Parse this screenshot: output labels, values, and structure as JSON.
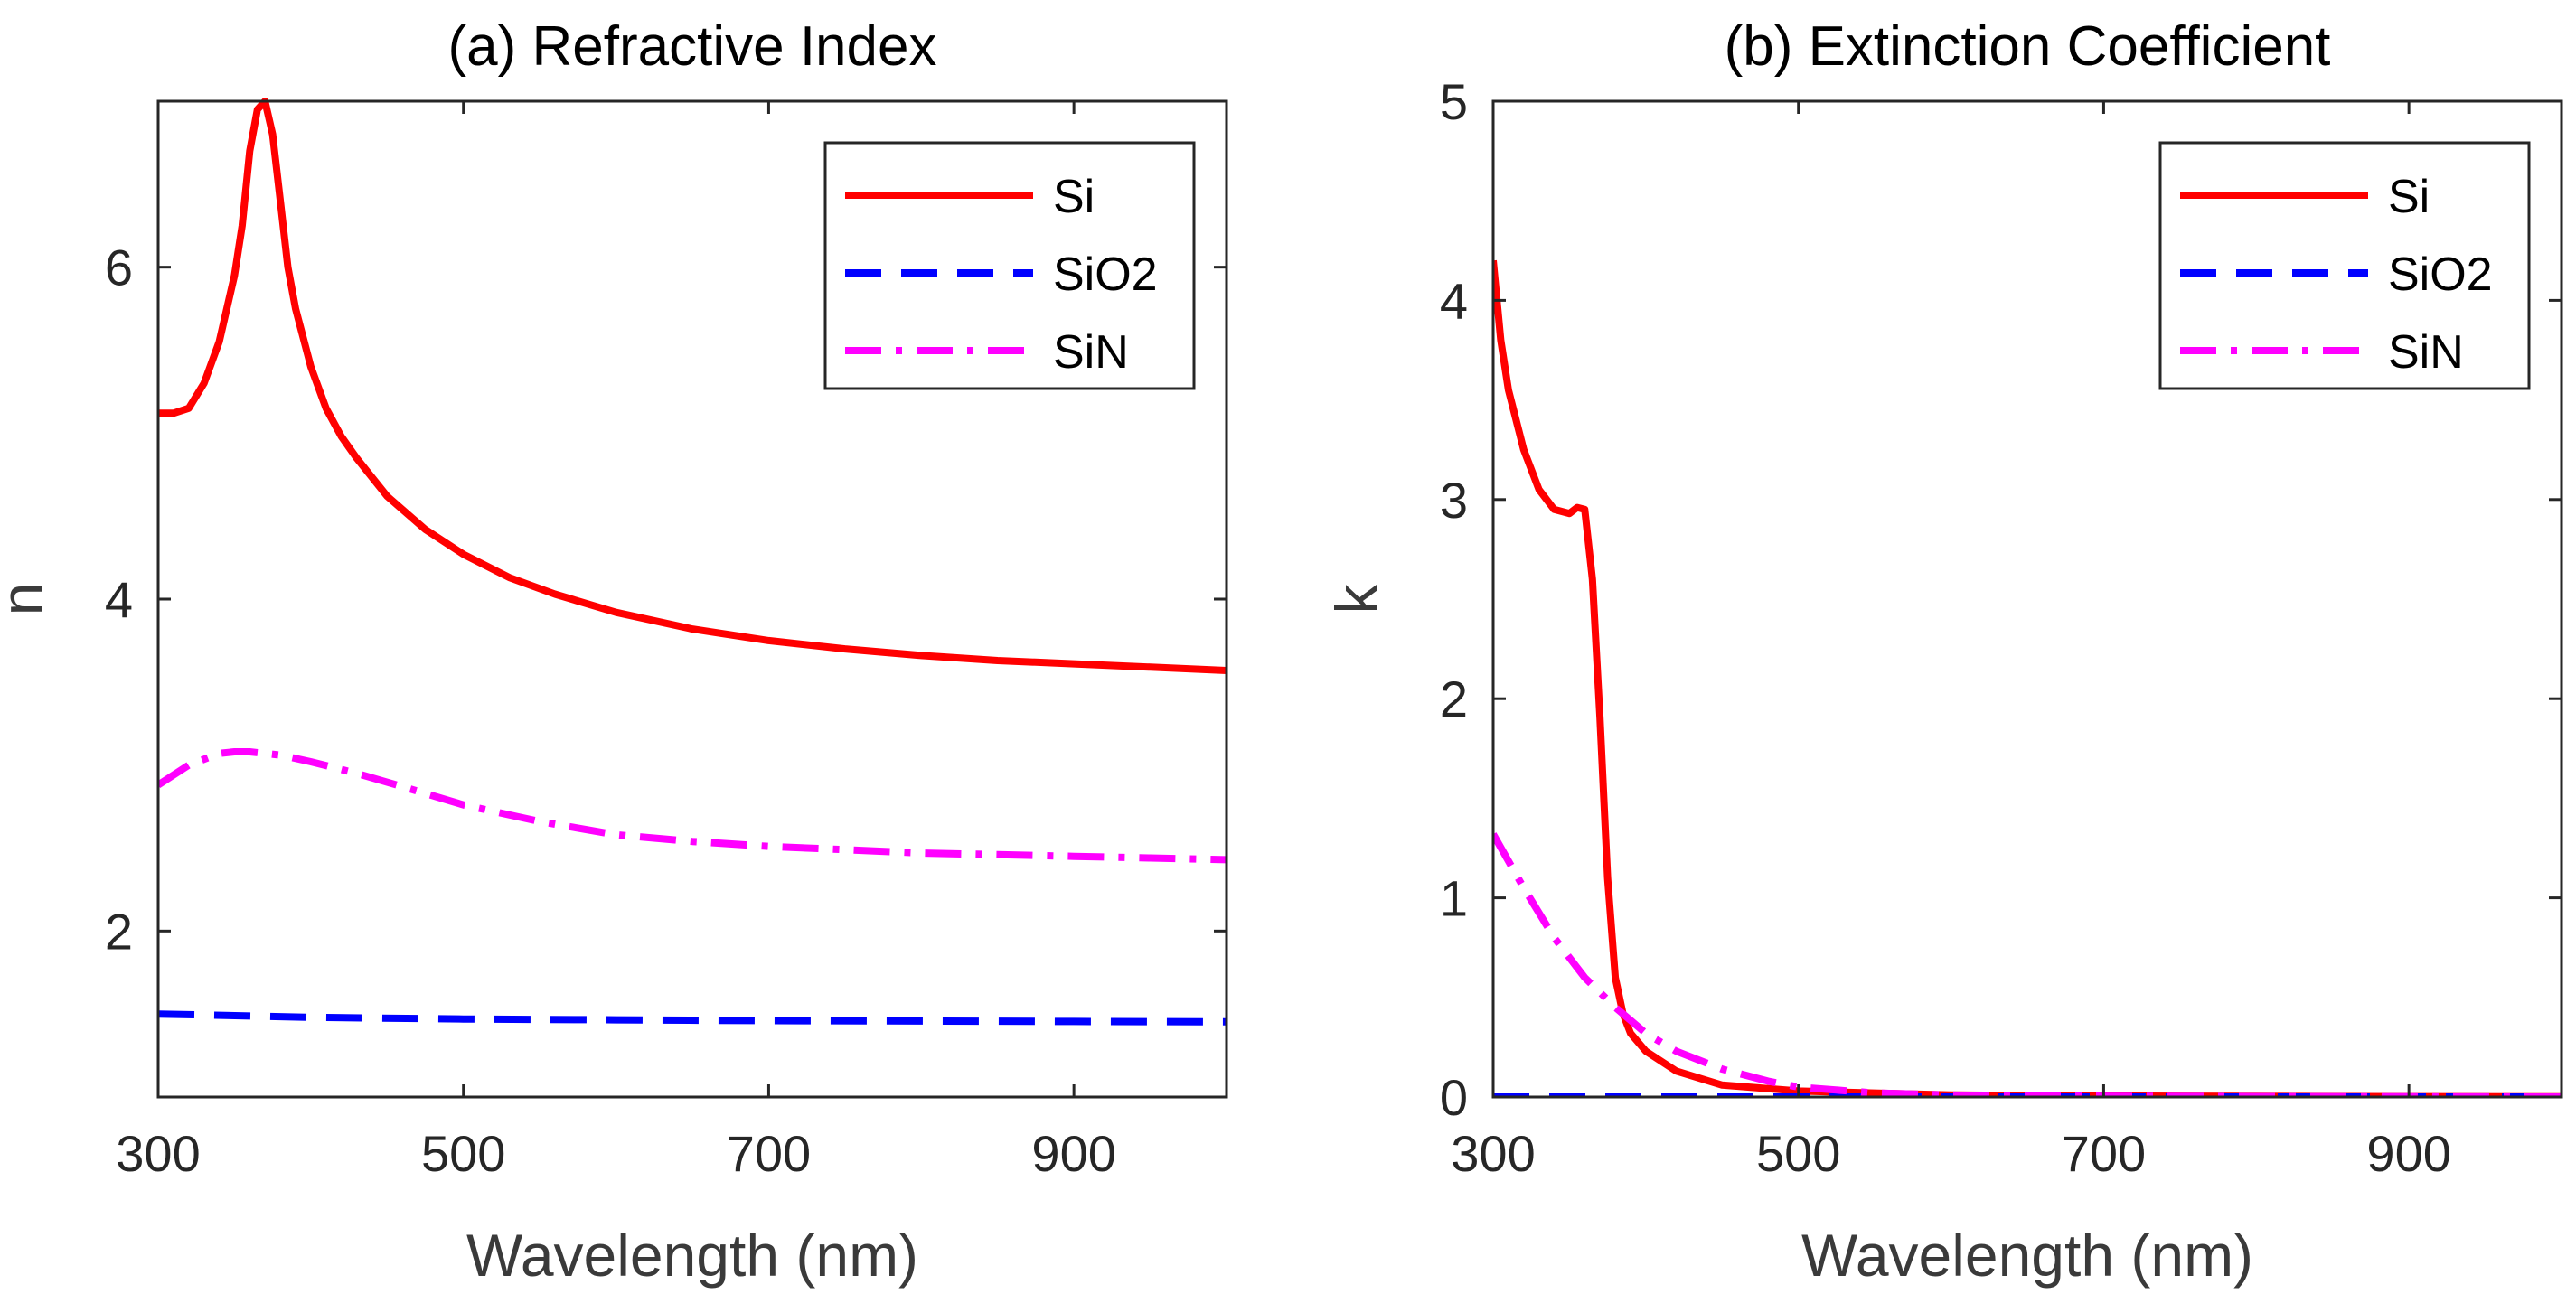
{
  "colors": {
    "Si": "#ff0000",
    "SiO2": "#0000ff",
    "SiN": "#ff00ff",
    "axis": "#262626",
    "background": "#ffffff"
  },
  "chart_data": [
    {
      "type": "line",
      "title": "(a) Refractive Index",
      "xlabel": "Wavelength (nm)",
      "ylabel": "n",
      "xlim": [
        300,
        1000
      ],
      "ylim": [
        1,
        7
      ],
      "xticks": [
        300,
        500,
        700,
        900
      ],
      "yticks": [
        2,
        4,
        6
      ],
      "grid": false,
      "legend": "top-right",
      "series": [
        {
          "name": "Si",
          "style": "solid",
          "color": "#ff0000",
          "x": [
            300,
            310,
            320,
            330,
            340,
            350,
            355,
            360,
            365,
            370,
            375,
            380,
            385,
            390,
            400,
            410,
            420,
            430,
            450,
            475,
            500,
            530,
            560,
            600,
            650,
            700,
            750,
            800,
            850,
            900,
            950,
            1000
          ],
          "y": [
            5.12,
            5.12,
            5.15,
            5.3,
            5.55,
            5.95,
            6.25,
            6.7,
            6.95,
            7.0,
            6.8,
            6.4,
            6.0,
            5.75,
            5.4,
            5.15,
            4.98,
            4.85,
            4.62,
            4.42,
            4.27,
            4.13,
            4.03,
            3.92,
            3.82,
            3.75,
            3.7,
            3.66,
            3.63,
            3.61,
            3.59,
            3.57
          ]
        },
        {
          "name": "SiO2",
          "style": "dashed",
          "color": "#0000ff",
          "x": [
            300,
            400,
            500,
            600,
            700,
            800,
            900,
            1000
          ],
          "y": [
            1.5,
            1.48,
            1.47,
            1.465,
            1.46,
            1.458,
            1.455,
            1.453
          ]
        },
        {
          "name": "SiN",
          "style": "dashdot",
          "color": "#ff00ff",
          "x": [
            300,
            320,
            340,
            350,
            360,
            380,
            400,
            430,
            460,
            500,
            550,
            600,
            650,
            700,
            750,
            800,
            850,
            900,
            950,
            1000
          ],
          "y": [
            2.88,
            3.0,
            3.07,
            3.08,
            3.08,
            3.06,
            3.02,
            2.95,
            2.87,
            2.76,
            2.66,
            2.58,
            2.54,
            2.51,
            2.49,
            2.47,
            2.46,
            2.45,
            2.44,
            2.43
          ]
        }
      ]
    },
    {
      "type": "line",
      "title": "(b) Extinction Coefficient",
      "xlabel": "Wavelength (nm)",
      "ylabel": "k",
      "xlim": [
        300,
        1000
      ],
      "ylim": [
        0,
        5
      ],
      "xticks": [
        300,
        500,
        700,
        900
      ],
      "yticks": [
        0,
        1,
        2,
        3,
        4,
        5
      ],
      "grid": false,
      "legend": "top-right",
      "series": [
        {
          "name": "Si",
          "style": "solid",
          "color": "#ff0000",
          "x": [
            300,
            305,
            310,
            320,
            330,
            340,
            350,
            355,
            360,
            365,
            370,
            375,
            380,
            385,
            390,
            400,
            420,
            450,
            500,
            550,
            600,
            700,
            800,
            900,
            1000
          ],
          "y": [
            4.2,
            3.8,
            3.55,
            3.25,
            3.05,
            2.95,
            2.93,
            2.96,
            2.95,
            2.6,
            1.9,
            1.1,
            0.6,
            0.42,
            0.32,
            0.23,
            0.13,
            0.06,
            0.03,
            0.02,
            0.01,
            0.005,
            0.003,
            0.002,
            0.001
          ]
        },
        {
          "name": "SiO2",
          "style": "dashed",
          "color": "#0000ff",
          "x": [
            300,
            1000
          ],
          "y": [
            0,
            0
          ]
        },
        {
          "name": "SiN",
          "style": "dashdot",
          "color": "#ff00ff",
          "x": [
            300,
            320,
            340,
            360,
            380,
            400,
            420,
            450,
            480,
            500,
            550,
            600,
            700,
            800,
            900,
            1000
          ],
          "y": [
            1.32,
            1.05,
            0.8,
            0.6,
            0.45,
            0.32,
            0.23,
            0.14,
            0.08,
            0.05,
            0.02,
            0.01,
            0.004,
            0.002,
            0.001,
            0.0
          ]
        }
      ]
    }
  ]
}
